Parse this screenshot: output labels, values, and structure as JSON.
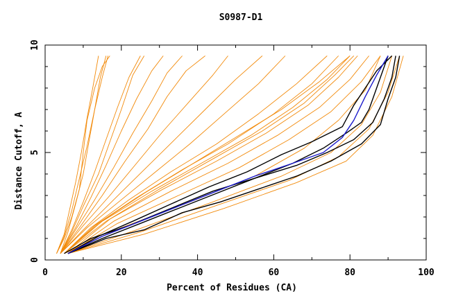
{
  "chart_data": {
    "type": "line",
    "title": "S0987-D1",
    "xlabel": "Percent of Residues (CA)",
    "ylabel": "Distance Cutoff, A",
    "xlim": [
      0,
      100
    ],
    "ylim": [
      0,
      10
    ],
    "x_ticks": [
      "0",
      "20",
      "40",
      "60",
      "80",
      "100"
    ],
    "y_ticks": [
      "0",
      "5",
      "10"
    ],
    "colors": {
      "orange": "#f28a0a",
      "black": "#000000",
      "blue": "#1a1acc"
    },
    "series": [
      {
        "name": "o1",
        "color": "orange",
        "points": [
          [
            3,
            0.3
          ],
          [
            5,
            1.0
          ],
          [
            7,
            2.0
          ],
          [
            9,
            3.3
          ],
          [
            10,
            5.0
          ],
          [
            11,
            6.5
          ],
          [
            13,
            8.0
          ],
          [
            15,
            9.0
          ],
          [
            17,
            9.5
          ]
        ]
      },
      {
        "name": "o2",
        "color": "orange",
        "points": [
          [
            3,
            0.3
          ],
          [
            5,
            1.2
          ],
          [
            6.5,
            2.4
          ],
          [
            8,
            3.6
          ],
          [
            9.5,
            5.0
          ],
          [
            11,
            6.6
          ],
          [
            12.5,
            8.0
          ],
          [
            14,
            9.5
          ]
        ]
      },
      {
        "name": "o3",
        "color": "orange",
        "points": [
          [
            4,
            0.3
          ],
          [
            6,
            1.3
          ],
          [
            8,
            2.6
          ],
          [
            10,
            4.0
          ],
          [
            11.5,
            5.5
          ],
          [
            13,
            7.0
          ],
          [
            14.5,
            8.5
          ],
          [
            16,
            9.5
          ]
        ]
      },
      {
        "name": "o4",
        "color": "orange",
        "points": [
          [
            3,
            0.3
          ],
          [
            5,
            1.1
          ],
          [
            7,
            2.3
          ],
          [
            9,
            3.8
          ],
          [
            11,
            5.3
          ],
          [
            13,
            7.0
          ],
          [
            15,
            8.5
          ],
          [
            16.5,
            9.5
          ]
        ]
      },
      {
        "name": "o5",
        "color": "orange",
        "points": [
          [
            4,
            0.3
          ],
          [
            7,
            1.4
          ],
          [
            10,
            2.7
          ],
          [
            13,
            4.1
          ],
          [
            16,
            5.6
          ],
          [
            19,
            7.1
          ],
          [
            22,
            8.5
          ],
          [
            25,
            9.5
          ]
        ]
      },
      {
        "name": "o6",
        "color": "orange",
        "points": [
          [
            4,
            0.3
          ],
          [
            7,
            1.3
          ],
          [
            10,
            2.5
          ],
          [
            14,
            4.0
          ],
          [
            17,
            5.5
          ],
          [
            20,
            7.0
          ],
          [
            23,
            8.6
          ],
          [
            26,
            9.5
          ]
        ]
      },
      {
        "name": "o7",
        "color": "orange",
        "points": [
          [
            4,
            0.3
          ],
          [
            8,
            1.5
          ],
          [
            12,
            2.9
          ],
          [
            16,
            4.4
          ],
          [
            20,
            6.0
          ],
          [
            24,
            7.5
          ],
          [
            28,
            8.8
          ],
          [
            31,
            9.5
          ]
        ]
      },
      {
        "name": "o8",
        "color": "orange",
        "points": [
          [
            4,
            0.3
          ],
          [
            8,
            1.4
          ],
          [
            13,
            2.8
          ],
          [
            18,
            4.3
          ],
          [
            23,
            5.9
          ],
          [
            28,
            7.4
          ],
          [
            32,
            8.7
          ],
          [
            36,
            9.5
          ]
        ]
      },
      {
        "name": "o9",
        "color": "orange",
        "points": [
          [
            4,
            0.3
          ],
          [
            9,
            1.5
          ],
          [
            15,
            3.0
          ],
          [
            21,
            4.6
          ],
          [
            27,
            6.1
          ],
          [
            32,
            7.6
          ],
          [
            37,
            8.8
          ],
          [
            42,
            9.5
          ]
        ]
      },
      {
        "name": "o10",
        "color": "orange",
        "points": [
          [
            4,
            0.3
          ],
          [
            10,
            1.6
          ],
          [
            17,
            3.0
          ],
          [
            24,
            4.5
          ],
          [
            31,
            6.0
          ],
          [
            38,
            7.4
          ],
          [
            44,
            8.6
          ],
          [
            48,
            9.5
          ]
        ]
      },
      {
        "name": "o11",
        "color": "orange",
        "points": [
          [
            4,
            0.3
          ],
          [
            10,
            1.4
          ],
          [
            18,
            2.8
          ],
          [
            26,
            4.2
          ],
          [
            34,
            5.6
          ],
          [
            42,
            7.0
          ],
          [
            50,
            8.4
          ],
          [
            57,
            9.5
          ]
        ]
      },
      {
        "name": "o12",
        "color": "orange",
        "points": [
          [
            4,
            0.3
          ],
          [
            11,
            1.5
          ],
          [
            20,
            2.8
          ],
          [
            29,
            4.1
          ],
          [
            38,
            5.4
          ],
          [
            47,
            6.8
          ],
          [
            56,
            8.2
          ],
          [
            63,
            9.5
          ]
        ]
      },
      {
        "name": "o13",
        "color": "orange",
        "points": [
          [
            5,
            0.3
          ],
          [
            12,
            1.5
          ],
          [
            22,
            2.8
          ],
          [
            33,
            4.1
          ],
          [
            45,
            5.4
          ],
          [
            56,
            6.8
          ],
          [
            66,
            8.2
          ],
          [
            74,
            9.5
          ]
        ]
      },
      {
        "name": "o14",
        "color": "orange",
        "points": [
          [
            5,
            0.3
          ],
          [
            13,
            1.6
          ],
          [
            24,
            2.9
          ],
          [
            36,
            4.2
          ],
          [
            48,
            5.4
          ],
          [
            60,
            6.8
          ],
          [
            70,
            8.2
          ],
          [
            77,
            9.5
          ]
        ]
      },
      {
        "name": "o15",
        "color": "orange",
        "points": [
          [
            5,
            0.3
          ],
          [
            14,
            1.7
          ],
          [
            26,
            3.1
          ],
          [
            38,
            4.4
          ],
          [
            50,
            5.7
          ],
          [
            62,
            7.0
          ],
          [
            72,
            8.3
          ],
          [
            80,
            9.5
          ]
        ]
      },
      {
        "name": "o16",
        "color": "orange",
        "points": [
          [
            5,
            0.3
          ],
          [
            15,
            1.8
          ],
          [
            28,
            3.2
          ],
          [
            41,
            4.5
          ],
          [
            54,
            5.8
          ],
          [
            65,
            7.1
          ],
          [
            74,
            8.4
          ],
          [
            80,
            9.5
          ]
        ]
      },
      {
        "name": "o17",
        "color": "orange",
        "points": [
          [
            5,
            0.3
          ],
          [
            16,
            1.8
          ],
          [
            30,
            3.3
          ],
          [
            44,
            4.7
          ],
          [
            57,
            6.0
          ],
          [
            68,
            7.3
          ],
          [
            76,
            8.6
          ],
          [
            81,
            9.5
          ]
        ]
      },
      {
        "name": "o18",
        "color": "orange",
        "points": [
          [
            6,
            0.3
          ],
          [
            17,
            1.9
          ],
          [
            31,
            3.3
          ],
          [
            45,
            4.6
          ],
          [
            58,
            5.9
          ],
          [
            69,
            7.2
          ],
          [
            77,
            8.5
          ],
          [
            82,
            9.5
          ]
        ]
      },
      {
        "name": "o19",
        "color": "orange",
        "points": [
          [
            6,
            0.3
          ],
          [
            18,
            1.8
          ],
          [
            33,
            3.2
          ],
          [
            48,
            4.5
          ],
          [
            61,
            5.8
          ],
          [
            72,
            7.1
          ],
          [
            80,
            8.4
          ],
          [
            85,
            9.5
          ]
        ]
      },
      {
        "name": "o20",
        "color": "orange",
        "points": [
          [
            6,
            0.3
          ],
          [
            19,
            1.7
          ],
          [
            35,
            3.0
          ],
          [
            51,
            4.3
          ],
          [
            64,
            5.6
          ],
          [
            75,
            6.9
          ],
          [
            83,
            8.3
          ],
          [
            88,
            9.5
          ]
        ]
      },
      {
        "name": "o21",
        "color": "orange",
        "points": [
          [
            5,
            0.3
          ],
          [
            20,
            1.5
          ],
          [
            38,
            2.7
          ],
          [
            55,
            3.9
          ],
          [
            68,
            5.2
          ],
          [
            77,
            6.5
          ],
          [
            84,
            7.9
          ],
          [
            88,
            9.5
          ]
        ]
      },
      {
        "name": "o22",
        "color": "orange",
        "points": [
          [
            6,
            0.3
          ],
          [
            24,
            1.4
          ],
          [
            44,
            2.7
          ],
          [
            62,
            3.9
          ],
          [
            75,
            5.0
          ],
          [
            83,
            6.3
          ],
          [
            88,
            7.8
          ],
          [
            91,
            9.5
          ]
        ]
      },
      {
        "name": "o23",
        "color": "orange",
        "points": [
          [
            6,
            0.3
          ],
          [
            25,
            1.3
          ],
          [
            46,
            2.6
          ],
          [
            64,
            3.7
          ],
          [
            77,
            4.8
          ],
          [
            85,
            6.1
          ],
          [
            90,
            7.8
          ],
          [
            93,
            9.5
          ]
        ]
      },
      {
        "name": "o24",
        "color": "orange",
        "points": [
          [
            6,
            0.3
          ],
          [
            26,
            1.2
          ],
          [
            47,
            2.4
          ],
          [
            66,
            3.6
          ],
          [
            79,
            4.6
          ],
          [
            86,
            5.8
          ],
          [
            91,
            7.6
          ],
          [
            94,
            9.5
          ]
        ]
      },
      {
        "name": "k1",
        "color": "black",
        "points": [
          [
            6,
            0.3
          ],
          [
            15,
            1.0
          ],
          [
            25,
            1.7
          ],
          [
            35,
            2.4
          ],
          [
            45,
            3.1
          ],
          [
            55,
            3.8
          ],
          [
            65,
            4.5
          ],
          [
            73,
            5.2
          ],
          [
            79,
            5.9
          ],
          [
            83,
            6.4
          ],
          [
            85,
            7.0
          ],
          [
            87,
            8.0
          ],
          [
            90,
            9.5
          ]
        ]
      },
      {
        "name": "k2",
        "color": "black",
        "points": [
          [
            6,
            0.3
          ],
          [
            14,
            1.1
          ],
          [
            23,
            1.8
          ],
          [
            33,
            2.6
          ],
          [
            43,
            3.4
          ],
          [
            53,
            4.1
          ],
          [
            62,
            4.9
          ],
          [
            70,
            5.5
          ],
          [
            78,
            6.2
          ],
          [
            81,
            7.2
          ],
          [
            84,
            8.0
          ],
          [
            87,
            8.8
          ],
          [
            91,
            9.5
          ]
        ]
      },
      {
        "name": "k3",
        "color": "black",
        "points": [
          [
            5,
            0.3
          ],
          [
            12,
            1.0
          ],
          [
            22,
            1.6
          ],
          [
            33,
            2.4
          ],
          [
            44,
            3.2
          ],
          [
            55,
            3.8
          ],
          [
            66,
            4.4
          ],
          [
            74,
            5.0
          ],
          [
            81,
            5.6
          ],
          [
            86,
            6.4
          ],
          [
            89,
            7.5
          ],
          [
            91,
            8.5
          ],
          [
            92,
            9.5
          ]
        ]
      },
      {
        "name": "k4",
        "color": "black",
        "points": [
          [
            6,
            0.3
          ],
          [
            16,
            1.0
          ],
          [
            26,
            1.4
          ],
          [
            36,
            2.2
          ],
          [
            46,
            2.7
          ],
          [
            56,
            3.3
          ],
          [
            66,
            3.9
          ],
          [
            75,
            4.6
          ],
          [
            83,
            5.4
          ],
          [
            88,
            6.3
          ],
          [
            90,
            7.5
          ],
          [
            92,
            8.5
          ],
          [
            93,
            9.5
          ]
        ]
      },
      {
        "name": "b1",
        "color": "blue",
        "points": [
          [
            6,
            0.3
          ],
          [
            15,
            1.1
          ],
          [
            25,
            1.8
          ],
          [
            35,
            2.5
          ],
          [
            45,
            3.2
          ],
          [
            55,
            3.9
          ],
          [
            65,
            4.5
          ],
          [
            73,
            5.0
          ],
          [
            78,
            5.7
          ],
          [
            81,
            6.5
          ],
          [
            84,
            7.6
          ],
          [
            87,
            8.6
          ],
          [
            90,
            9.5
          ]
        ]
      }
    ]
  }
}
